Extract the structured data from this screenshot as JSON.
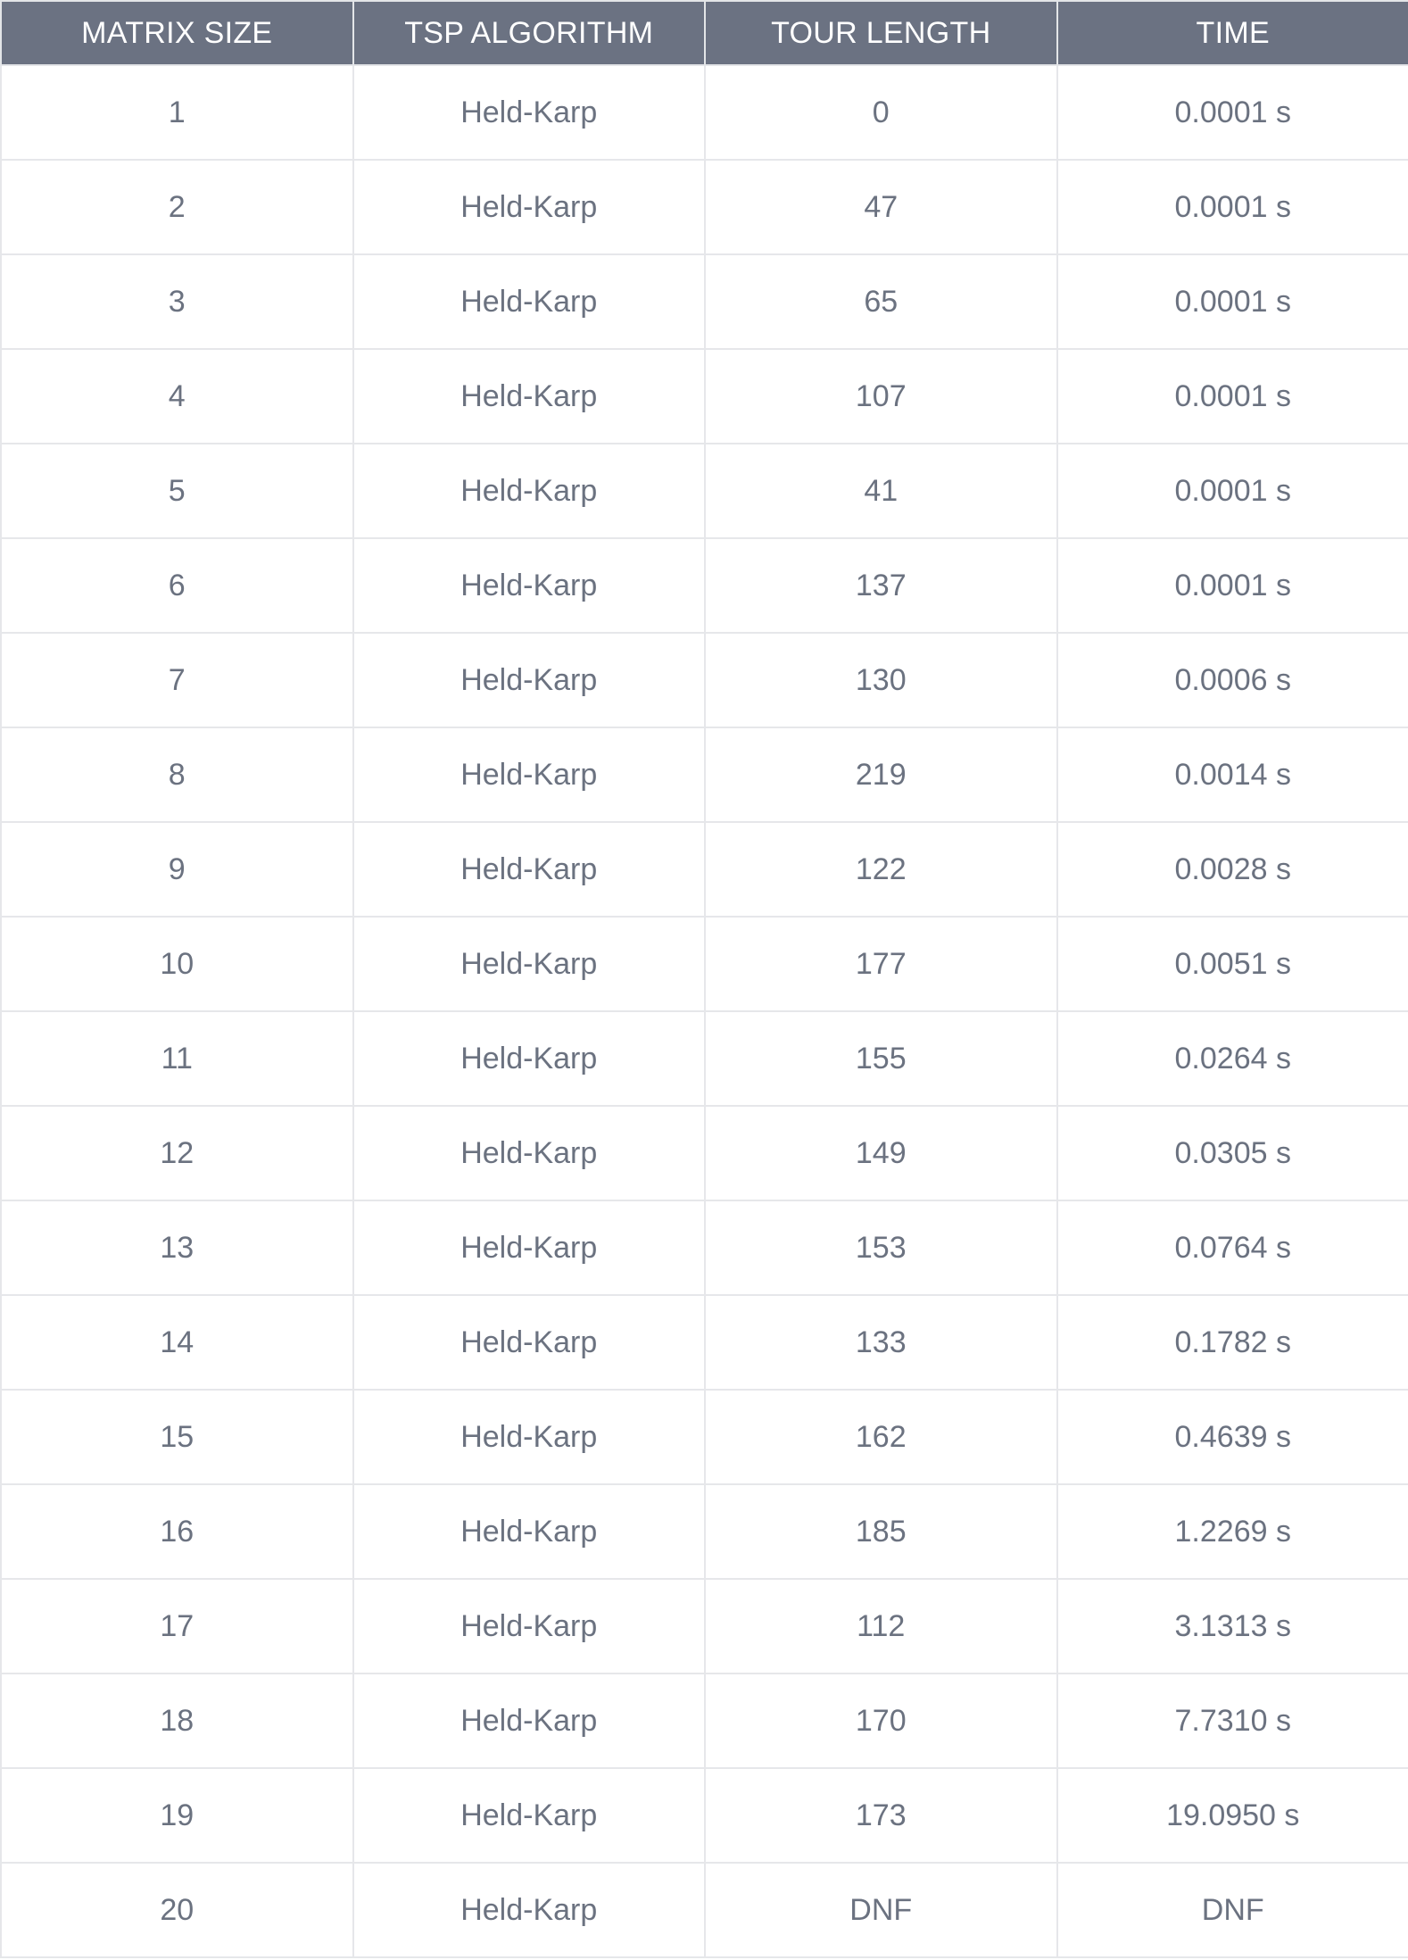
{
  "table": {
    "headers": [
      "MATRIX SIZE",
      "TSP ALGORITHM",
      "TOUR LENGTH",
      "TIME"
    ],
    "rows": [
      [
        "1",
        "Held-Karp",
        "0",
        "0.0001 s"
      ],
      [
        "2",
        "Held-Karp",
        "47",
        "0.0001 s"
      ],
      [
        "3",
        "Held-Karp",
        "65",
        "0.0001 s"
      ],
      [
        "4",
        "Held-Karp",
        "107",
        "0.0001 s"
      ],
      [
        "5",
        "Held-Karp",
        "41",
        "0.0001 s"
      ],
      [
        "6",
        "Held-Karp",
        "137",
        "0.0001 s"
      ],
      [
        "7",
        "Held-Karp",
        "130",
        "0.0006 s"
      ],
      [
        "8",
        "Held-Karp",
        "219",
        "0.0014 s"
      ],
      [
        "9",
        "Held-Karp",
        "122",
        "0.0028 s"
      ],
      [
        "10",
        "Held-Karp",
        "177",
        "0.0051 s"
      ],
      [
        "11",
        "Held-Karp",
        "155",
        "0.0264 s"
      ],
      [
        "12",
        "Held-Karp",
        "149",
        "0.0305 s"
      ],
      [
        "13",
        "Held-Karp",
        "153",
        "0.0764 s"
      ],
      [
        "14",
        "Held-Karp",
        "133",
        "0.1782 s"
      ],
      [
        "15",
        "Held-Karp",
        "162",
        "0.4639 s"
      ],
      [
        "16",
        "Held-Karp",
        "185",
        "1.2269 s"
      ],
      [
        "17",
        "Held-Karp",
        "112",
        "3.1313 s"
      ],
      [
        "18",
        "Held-Karp",
        "170",
        "7.7310 s"
      ],
      [
        "19",
        "Held-Karp",
        "173",
        "19.0950 s"
      ],
      [
        "20",
        "Held-Karp",
        "DNF",
        "DNF"
      ]
    ]
  },
  "colors": {
    "header_bg": "#6b7282",
    "header_text": "#ffffff",
    "cell_text": "#6b7280",
    "grid_line": "#e6e7ea"
  }
}
